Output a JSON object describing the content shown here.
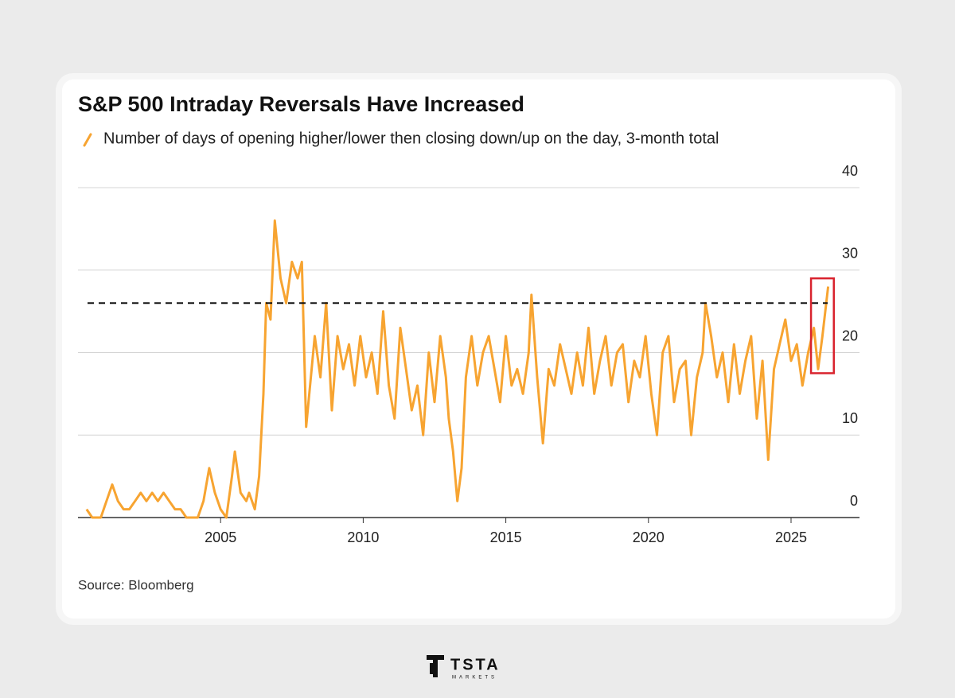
{
  "chart_data": {
    "type": "line",
    "title": "S&P 500 Intraday Reversals Have Increased",
    "source": "Source: Bloomberg",
    "series": [
      {
        "name": "Number of days of opening higher/lower then closing down/up on the day, 3-month total",
        "color": "#f7a431",
        "x": [
          2000.3,
          2000.5,
          2000.8,
          2001.0,
          2001.2,
          2001.4,
          2001.6,
          2001.8,
          2002.0,
          2002.2,
          2002.4,
          2002.6,
          2002.8,
          2003.0,
          2003.2,
          2003.4,
          2003.6,
          2003.8,
          2004.0,
          2004.2,
          2004.4,
          2004.6,
          2004.8,
          2005.0,
          2005.2,
          2005.4,
          2005.5,
          2005.7,
          2005.9,
          2006.0,
          2006.2,
          2006.35,
          2006.5,
          2006.6,
          2006.75,
          2006.9,
          2007.1,
          2007.3,
          2007.5,
          2007.7,
          2007.85,
          2008.0,
          2008.3,
          2008.5,
          2008.7,
          2008.9,
          2009.1,
          2009.3,
          2009.5,
          2009.7,
          2009.9,
          2010.1,
          2010.3,
          2010.5,
          2010.7,
          2010.9,
          2011.1,
          2011.3,
          2011.5,
          2011.7,
          2011.9,
          2012.1,
          2012.3,
          2012.5,
          2012.7,
          2012.9,
          2013.0,
          2013.15,
          2013.3,
          2013.45,
          2013.6,
          2013.8,
          2014.0,
          2014.2,
          2014.4,
          2014.6,
          2014.8,
          2015.0,
          2015.2,
          2015.4,
          2015.6,
          2015.8,
          2015.9,
          2016.1,
          2016.3,
          2016.5,
          2016.7,
          2016.9,
          2017.1,
          2017.3,
          2017.5,
          2017.7,
          2017.9,
          2018.1,
          2018.3,
          2018.5,
          2018.7,
          2018.9,
          2019.1,
          2019.3,
          2019.5,
          2019.7,
          2019.9,
          2020.1,
          2020.3,
          2020.5,
          2020.7,
          2020.9,
          2021.1,
          2021.3,
          2021.5,
          2021.7,
          2021.9,
          2022.0,
          2022.2,
          2022.4,
          2022.6,
          2022.8,
          2023.0,
          2023.2,
          2023.4,
          2023.6,
          2023.8,
          2024.0,
          2024.2,
          2024.4,
          2024.6,
          2024.8,
          2025.0,
          2025.2,
          2025.4,
          2025.6,
          2025.8,
          2025.95,
          2026.1,
          2026.3
        ],
        "values": [
          1,
          0,
          0,
          2,
          4,
          2,
          1,
          1,
          2,
          3,
          2,
          3,
          2,
          3,
          2,
          1,
          1,
          0,
          0,
          0,
          2,
          6,
          3,
          1,
          0,
          5,
          8,
          3,
          2,
          3,
          1,
          5,
          15,
          26,
          24,
          36,
          29,
          26,
          31,
          29,
          31,
          11,
          22,
          17,
          26,
          13,
          22,
          18,
          21,
          16,
          22,
          17,
          20,
          15,
          25,
          16,
          12,
          23,
          18,
          13,
          16,
          10,
          20,
          14,
          22,
          17,
          12,
          8,
          2,
          6,
          17,
          22,
          16,
          20,
          22,
          18,
          14,
          22,
          16,
          18,
          15,
          20,
          27,
          17,
          9,
          18,
          16,
          21,
          18,
          15,
          20,
          16,
          23,
          15,
          19,
          22,
          16,
          20,
          21,
          14,
          19,
          17,
          22,
          15,
          10,
          20,
          22,
          14,
          18,
          19,
          10,
          17,
          20,
          26,
          22,
          17,
          20,
          14,
          21,
          15,
          19,
          22,
          12,
          19,
          7,
          18,
          21,
          24,
          19,
          21,
          16,
          20,
          23,
          18,
          22,
          28
        ]
      }
    ],
    "reference_line": 26,
    "highlight": {
      "x": [
        2025.7,
        2026.5
      ],
      "y": [
        17.5,
        29
      ],
      "color": "#d9232e"
    },
    "xlim": [
      2000,
      2027.4
    ],
    "xticks": [
      2005,
      2010,
      2015,
      2020,
      2025
    ],
    "ylim": [
      0,
      40
    ],
    "yticks": [
      0,
      10,
      20,
      30,
      40
    ],
    "grid": true,
    "y_axis_side": "right"
  },
  "brand": {
    "name": "TSTA",
    "tagline": "MARKETS"
  }
}
